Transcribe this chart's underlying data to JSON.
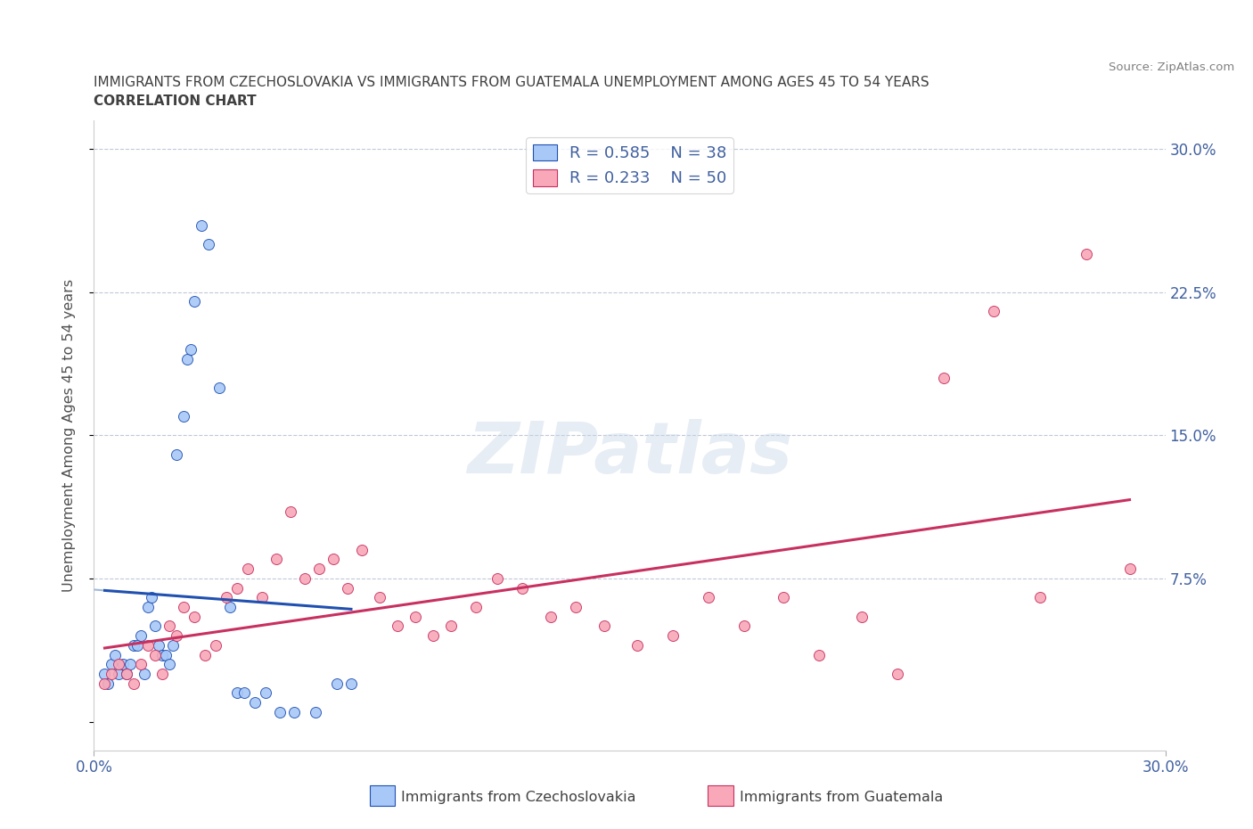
{
  "title_line1": "IMMIGRANTS FROM CZECHOSLOVAKIA VS IMMIGRANTS FROM GUATEMALA UNEMPLOYMENT AMONG AGES 45 TO 54 YEARS",
  "title_line2": "CORRELATION CHART",
  "source_text": "Source: ZipAtlas.com",
  "ylabel": "Unemployment Among Ages 45 to 54 years",
  "xlim": [
    0.0,
    0.3
  ],
  "ylim": [
    -0.015,
    0.315
  ],
  "R_czech": 0.585,
  "N_czech": 38,
  "R_guatemala": 0.233,
  "N_guatemala": 50,
  "color_czech": "#a8c8f8",
  "color_guatemala": "#f8a8b8",
  "line_color_czech": "#2050b0",
  "line_color_guatemala": "#c83060",
  "line_color_czech_ext": "#a0b8d8",
  "title_color": "#404040",
  "axis_label_color": "#4060a0",
  "czech_x": [
    0.003,
    0.004,
    0.005,
    0.006,
    0.007,
    0.008,
    0.009,
    0.01,
    0.011,
    0.012,
    0.013,
    0.014,
    0.015,
    0.016,
    0.017,
    0.018,
    0.019,
    0.02,
    0.021,
    0.022,
    0.023,
    0.025,
    0.026,
    0.027,
    0.028,
    0.03,
    0.032,
    0.035,
    0.038,
    0.04,
    0.042,
    0.045,
    0.048,
    0.052,
    0.056,
    0.062,
    0.068,
    0.072
  ],
  "czech_y": [
    0.025,
    0.02,
    0.03,
    0.035,
    0.025,
    0.03,
    0.025,
    0.03,
    0.04,
    0.04,
    0.045,
    0.025,
    0.06,
    0.065,
    0.05,
    0.04,
    0.035,
    0.035,
    0.03,
    0.04,
    0.14,
    0.16,
    0.19,
    0.195,
    0.22,
    0.26,
    0.25,
    0.175,
    0.06,
    0.015,
    0.015,
    0.01,
    0.015,
    0.005,
    0.005,
    0.005,
    0.02,
    0.02
  ],
  "guatemala_x": [
    0.003,
    0.005,
    0.007,
    0.009,
    0.011,
    0.013,
    0.015,
    0.017,
    0.019,
    0.021,
    0.023,
    0.025,
    0.028,
    0.031,
    0.034,
    0.037,
    0.04,
    0.043,
    0.047,
    0.051,
    0.055,
    0.059,
    0.063,
    0.067,
    0.071,
    0.075,
    0.08,
    0.085,
    0.09,
    0.095,
    0.1,
    0.107,
    0.113,
    0.12,
    0.128,
    0.135,
    0.143,
    0.152,
    0.162,
    0.172,
    0.182,
    0.193,
    0.203,
    0.215,
    0.225,
    0.238,
    0.252,
    0.265,
    0.278,
    0.29
  ],
  "guatemala_y": [
    0.02,
    0.025,
    0.03,
    0.025,
    0.02,
    0.03,
    0.04,
    0.035,
    0.025,
    0.05,
    0.045,
    0.06,
    0.055,
    0.035,
    0.04,
    0.065,
    0.07,
    0.08,
    0.065,
    0.085,
    0.11,
    0.075,
    0.08,
    0.085,
    0.07,
    0.09,
    0.065,
    0.05,
    0.055,
    0.045,
    0.05,
    0.06,
    0.075,
    0.07,
    0.055,
    0.06,
    0.05,
    0.04,
    0.045,
    0.065,
    0.05,
    0.065,
    0.035,
    0.055,
    0.025,
    0.18,
    0.215,
    0.065,
    0.245,
    0.08
  ]
}
